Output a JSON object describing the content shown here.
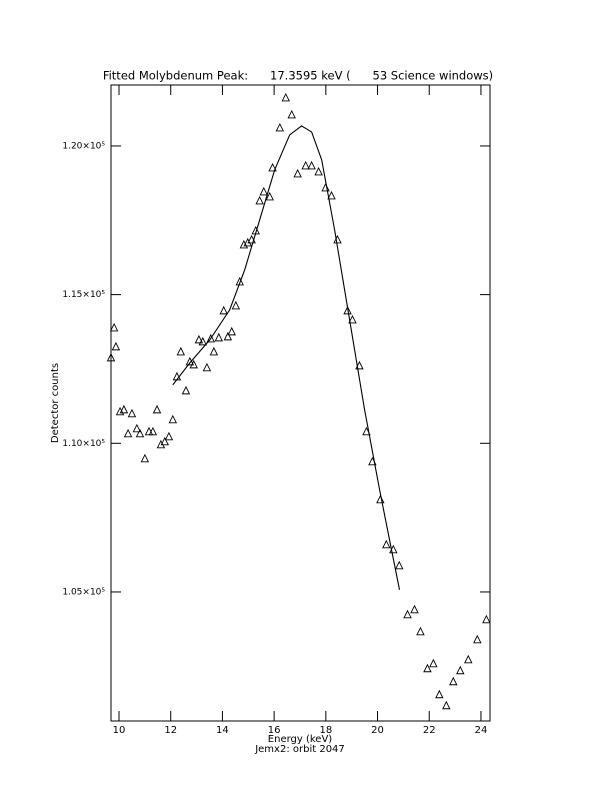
{
  "chart_data": {
    "type": "scatter",
    "title": "Fitted Molybdenum Peak:      17.3595 keV (      53 Science windows)",
    "x_label": "Energy (keV)",
    "subtitle": "Jemx2: orbit 2047",
    "y_label": "Detector counts",
    "xlim": [
      9.69,
      24.35
    ],
    "ylim": [
      100660,
      122050
    ],
    "xticks": [
      10,
      12,
      14,
      16,
      18,
      20,
      22,
      24
    ],
    "yticks": [
      {
        "value": 105000,
        "label": "1.05×10⁵"
      },
      {
        "value": 110000,
        "label": "1.10×10⁵"
      },
      {
        "value": 115000,
        "label": "1.15×10⁵"
      },
      {
        "value": 120000,
        "label": "1.20×10⁵"
      }
    ],
    "series": [
      {
        "marker": "triangle",
        "color": "#000000",
        "x": [
          9.69,
          9.81,
          9.88,
          10.04,
          10.19,
          10.35,
          10.5,
          10.69,
          10.81,
          11.0,
          11.16,
          11.31,
          11.47,
          11.62,
          11.77,
          11.93,
          12.08,
          12.24,
          12.39,
          12.59,
          12.74,
          12.89,
          13.09,
          13.24,
          13.4,
          13.55,
          13.67,
          13.86,
          14.05,
          14.21,
          14.36,
          14.52,
          14.67,
          14.83,
          14.98,
          15.13,
          15.29,
          15.44,
          15.6,
          15.83,
          15.94,
          16.22,
          16.45,
          16.68,
          16.91,
          17.22,
          17.45,
          17.72,
          17.99,
          18.22,
          18.45,
          18.84,
          19.03,
          19.3,
          19.57,
          19.8,
          20.11,
          20.34,
          20.61,
          20.84,
          21.16,
          21.43,
          21.66,
          21.93,
          22.16,
          22.39,
          22.66,
          22.93,
          23.2,
          23.51,
          23.86,
          24.21
        ],
        "values": [
          112873,
          113881,
          113243,
          111057,
          111124,
          110318,
          110990,
          110486,
          110318,
          109477,
          110385,
          110385,
          111124,
          109948,
          110049,
          110217,
          110788,
          112234,
          113074,
          111763,
          112738,
          112637,
          113478,
          113411,
          112537,
          113511,
          113074,
          113545,
          114453,
          113579,
          113747,
          114621,
          115428,
          116672,
          116739,
          116840,
          117142,
          118151,
          118454,
          118286,
          119261,
          120605,
          121614,
          121042,
          119059,
          119328,
          119328,
          119126,
          118588,
          118319,
          116840,
          114453,
          114150,
          112604,
          110385,
          109376,
          108099,
          106586,
          106418,
          105880,
          104232,
          104400,
          103661,
          102417,
          102585,
          101543,
          101173,
          101980,
          102350,
          102719,
          103392,
          104064
        ]
      },
      {
        "marker": "line",
        "color": "#000000",
        "x": [
          12.08,
          12.74,
          13.51,
          14.28,
          14.86,
          15.44,
          16.02,
          16.6,
          17.06,
          17.45,
          17.84,
          18.34,
          18.92,
          19.5,
          20.08,
          20.54,
          20.85
        ],
        "values": [
          111965,
          112705,
          113478,
          114487,
          115831,
          117512,
          119193,
          120370,
          120673,
          120471,
          119530,
          117176,
          114150,
          111124,
          108435,
          106418,
          105073
        ]
      }
    ]
  }
}
